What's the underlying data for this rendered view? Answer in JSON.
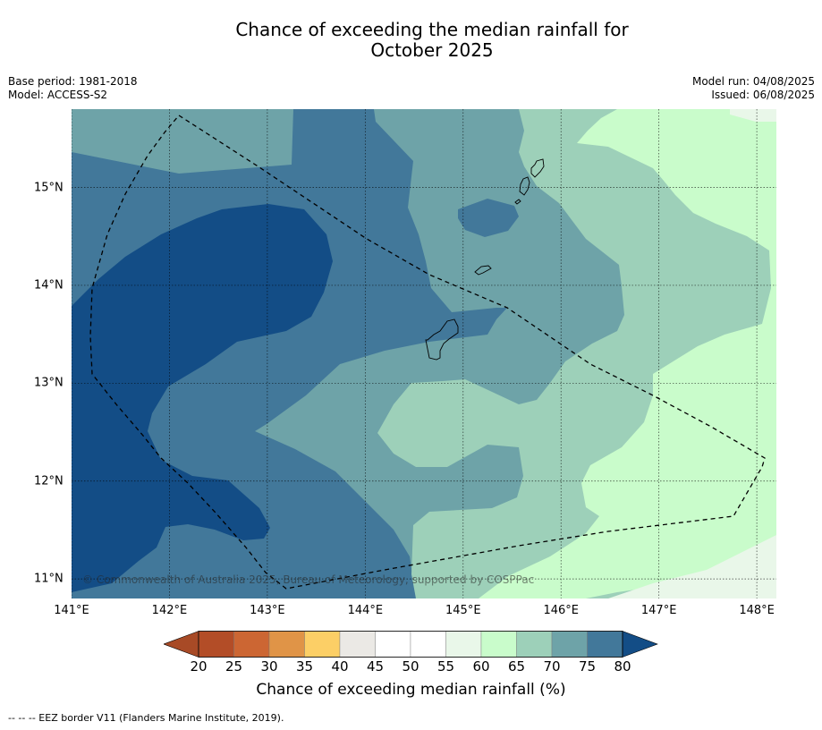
{
  "title_line1": "Chance of exceeding the median rainfall for",
  "title_line2": "October 2025",
  "base_period": "Base period: 1981-2018",
  "model": "Model: ACCESS-S2",
  "model_run": "Model run: 04/08/2025",
  "issued": "Issued: 06/08/2025",
  "copyright": "© Commonwealth of Australia 2025, Bureau of Meteorology, supported by COSPPac",
  "footer": "--  --  -- EEZ border V11 (Flanders Marine Institute, 2019).",
  "map": {
    "lon_range": [
      141.0,
      148.2
    ],
    "lat_range": [
      10.8,
      15.8
    ],
    "x_ticks": [
      "141°E",
      "142°E",
      "143°E",
      "144°E",
      "145°E",
      "146°E",
      "147°E",
      "148°E"
    ],
    "y_ticks": [
      "15°N",
      "14°N",
      "13°N",
      "12°N",
      "11°N"
    ],
    "grid": true
  },
  "colorbar": {
    "title": "Chance of exceeding median rainfall (%)",
    "labels": [
      "20",
      "25",
      "30",
      "35",
      "40",
      "45",
      "50",
      "55",
      "60",
      "65",
      "70",
      "75",
      "80"
    ],
    "colors": [
      "#a84a26",
      "#b34d27",
      "#cc6633",
      "#e09447",
      "#fccf66",
      "#ebe9e5",
      "#ffffff",
      "#ffffff",
      "#e9f7e9",
      "#c9fccb",
      "#9dd0b9",
      "#6ea3a8",
      "#42789a",
      "#134d86"
    ]
  }
}
